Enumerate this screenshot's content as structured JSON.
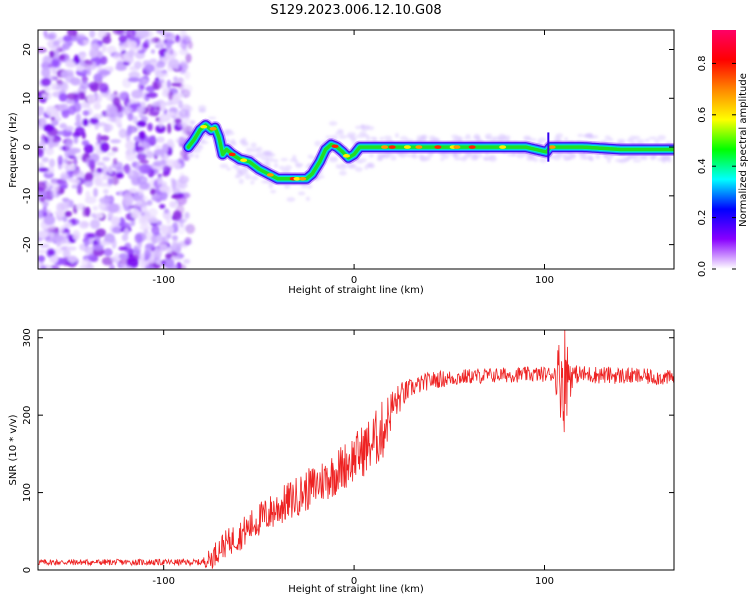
{
  "title": "S129.2023.006.12.10.G08",
  "chart_data": [
    {
      "type": "heatmap",
      "title": "S129.2023.006.12.10.G08",
      "xlabel": "Height of straight line (km)",
      "ylabel": "Frequency (Hz)",
      "xlim": [
        -166,
        168
      ],
      "ylim": [
        -25,
        24
      ],
      "x_ticks": [
        -100,
        0,
        100
      ],
      "y_ticks": [
        -20,
        -10,
        0,
        10,
        20
      ],
      "colorbar": {
        "label": "Normalized spectral amplitude",
        "range": [
          0,
          0.93
        ],
        "ticks": [
          0.0,
          0.2,
          0.4,
          0.6,
          0.8
        ],
        "colormap": [
          "#ffffff",
          "#8800ff",
          "#0000ff",
          "#00ffff",
          "#00ff00",
          "#ffff00",
          "#ff8800",
          "#ff0000",
          "#ff0066"
        ]
      },
      "noise_region_x": [
        -166,
        -86
      ],
      "ridge": {
        "x": [
          -87,
          -84,
          -81,
          -78,
          -75,
          -73,
          -71,
          -69,
          -67,
          -64,
          -60,
          -55,
          -50,
          -45,
          -40,
          -35,
          -30,
          -25,
          -22,
          -18,
          -15,
          -12,
          -9,
          -6,
          -3,
          0,
          3,
          6,
          15,
          30,
          50,
          70,
          90,
          101,
          103,
          120,
          140,
          168
        ],
        "y": [
          0,
          1.5,
          3.5,
          4.5,
          3.5,
          4,
          2,
          -1.5,
          -0.5,
          -1.5,
          -2.5,
          -3,
          -4.5,
          -5.5,
          -6.5,
          -6.5,
          -6.5,
          -6.5,
          -5.5,
          -3,
          -0.5,
          0.5,
          0,
          -1,
          -2.2,
          -1.5,
          0,
          0,
          0,
          0,
          0,
          0,
          0,
          -1,
          0,
          0,
          -0.5,
          -0.5
        ]
      },
      "grid": false
    },
    {
      "type": "line",
      "xlabel": "Height of straight line (km)",
      "ylabel": "SNR (10 * v/v)",
      "xlim": [
        -166,
        168
      ],
      "ylim": [
        0,
        310
      ],
      "x_ticks": [
        -100,
        0,
        100
      ],
      "y_ticks": [
        0,
        100,
        200,
        300
      ],
      "color": "#ee2222",
      "envelope": {
        "x": [
          -166,
          -120,
          -80,
          -75,
          -70,
          -60,
          -50,
          -40,
          -30,
          -20,
          -10,
          0,
          10,
          15,
          20,
          25,
          30,
          40,
          60,
          80,
          100,
          108,
          110,
          112,
          130,
          150,
          168
        ],
        "y": [
          10,
          10,
          10,
          15,
          30,
          45,
          65,
          80,
          95,
          110,
          125,
          145,
          165,
          180,
          210,
          225,
          235,
          245,
          250,
          252,
          253,
          253,
          250,
          253,
          252,
          250,
          248
        ]
      },
      "noise_amplitude": {
        "x": [
          -166,
          -80,
          -75,
          -60,
          -40,
          -20,
          0,
          15,
          20,
          30,
          60,
          105,
          110,
          115,
          168
        ],
        "y": [
          4,
          4,
          15,
          20,
          25,
          28,
          32,
          40,
          25,
          12,
          10,
          10,
          80,
          12,
          10
        ]
      },
      "grid": false
    }
  ]
}
